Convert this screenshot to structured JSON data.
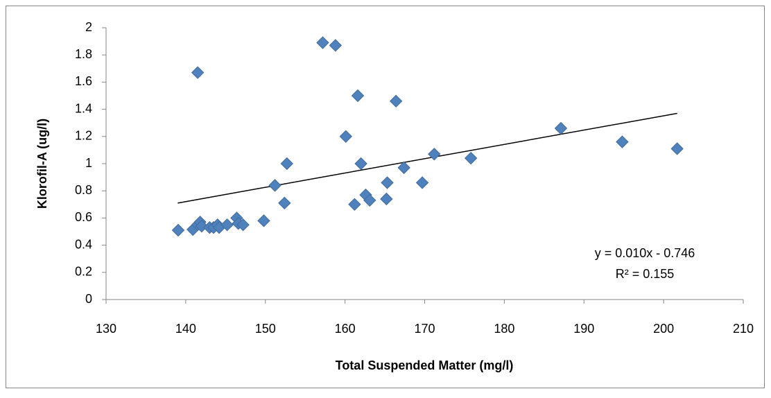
{
  "chart_data": {
    "type": "scatter",
    "x_label": "Total Suspended Matter (mg/l)",
    "y_label": "Klorofil-A (ug/l)",
    "color": "#4f81bd",
    "x": [
      139.05,
      141.5,
      140.9,
      141.5,
      141.8,
      142.0,
      143.0,
      143.5,
      144.0,
      144.2,
      145.2,
      146.4,
      146.6,
      147.2,
      149.8,
      151.2,
      152.4,
      152.7,
      157.2,
      158.8,
      160.1,
      161.2,
      161.6,
      162.0,
      162.6,
      163.1,
      165.2,
      165.3,
      166.4,
      167.4,
      169.7,
      171.2,
      175.8,
      187.1,
      194.8,
      201.7
    ],
    "values": [
      0.51,
      1.67,
      0.515,
      0.55,
      0.57,
      0.54,
      0.53,
      0.53,
      0.55,
      0.53,
      0.55,
      0.6,
      0.56,
      0.55,
      0.58,
      0.84,
      0.71,
      1.0,
      1.89,
      1.87,
      1.2,
      0.7,
      1.5,
      1.0,
      0.77,
      0.73,
      0.74,
      0.86,
      1.46,
      0.97,
      0.86,
      1.07,
      1.04,
      1.26,
      1.16,
      1.11
    ],
    "trendline": {
      "x": [
        139,
        201.7
      ],
      "y": [
        0.71,
        1.37
      ],
      "color": "#000000"
    },
    "annotations": [
      "y = 0.010x - 0.746",
      "R² = 0.155"
    ],
    "xlim": [
      130,
      210
    ],
    "xticks": [
      130,
      140,
      150,
      160,
      170,
      180,
      190,
      200,
      210
    ],
    "ylim": [
      0,
      2
    ],
    "yticks": [
      0,
      0.2,
      0.4,
      0.6,
      0.8,
      1,
      1.2,
      1.4,
      1.6,
      1.8,
      2
    ],
    "grid": false
  }
}
